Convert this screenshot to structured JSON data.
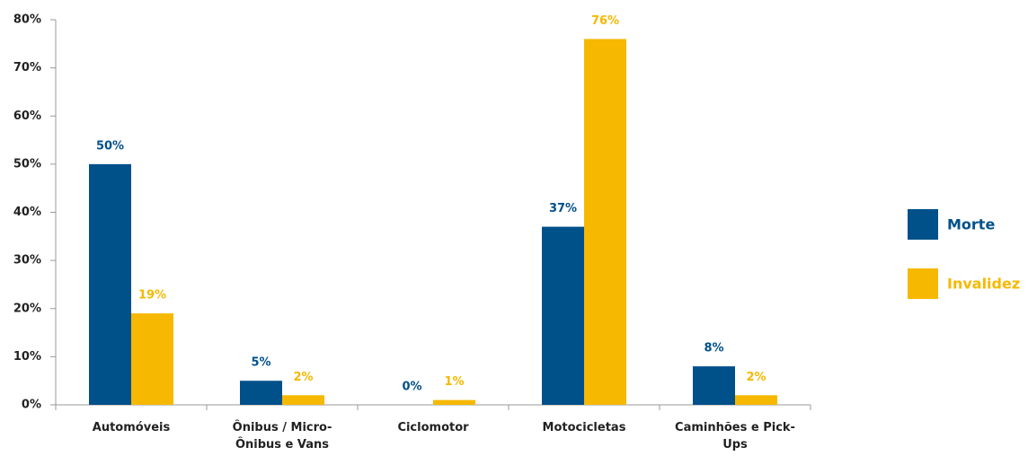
{
  "chart_data": {
    "type": "bar",
    "categories": [
      "Automóveis",
      "Ônibus / Micro-Ônibus e Vans",
      "Ciclomotor",
      "Motocicletas",
      "Caminhões e Pick-Ups"
    ],
    "series": [
      {
        "name": "Morte",
        "color": "#00508a",
        "values": [
          50,
          5,
          0,
          37,
          8
        ],
        "value_labels": [
          "50%",
          "5%",
          "0%",
          "37%",
          "8%"
        ]
      },
      {
        "name": "Invalidez",
        "color": "#f6b800",
        "values": [
          19,
          2,
          1,
          76,
          2
        ],
        "value_labels": [
          "19%",
          "2%",
          "1%",
          "76%",
          "2%"
        ]
      }
    ],
    "ylim": [
      0,
      80
    ],
    "yticks": [
      {
        "value": 0,
        "label": "0%"
      },
      {
        "value": 10,
        "label": "10%"
      },
      {
        "value": 20,
        "label": "20%"
      },
      {
        "value": 30,
        "label": "30%"
      },
      {
        "value": 40,
        "label": "40%"
      },
      {
        "value": 50,
        "label": "50%"
      },
      {
        "value": 60,
        "label": "60%"
      },
      {
        "value": 70,
        "label": "70%"
      },
      {
        "value": 80,
        "label": "80%"
      }
    ],
    "grid": false,
    "legend": "right"
  }
}
